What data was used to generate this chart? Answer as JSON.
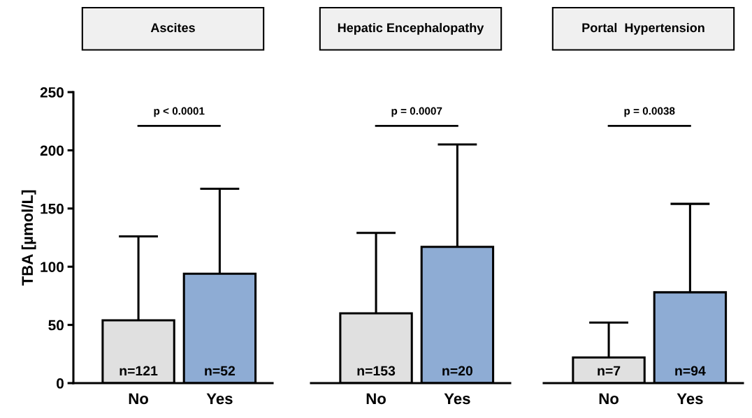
{
  "chart_data": [
    {
      "type": "bar",
      "title": "Ascites",
      "ylabel": "TBA [µmol/L]",
      "categories": [
        "No",
        "Yes"
      ],
      "values": [
        54,
        94
      ],
      "colors": [
        "#e0e0e0",
        "#8eacd4"
      ],
      "errors": [
        [
          54,
          126
        ],
        [
          94,
          167
        ]
      ],
      "ylim": [
        0,
        250
      ],
      "yticks": [
        0,
        50,
        100,
        150,
        200,
        250
      ],
      "grid": false,
      "legend": false,
      "annotations": [
        "p < 0.0001",
        {
          "text": "n=121",
          "x": "No",
          "y": 0
        },
        {
          "text": "n=52",
          "x": "Yes",
          "y": 0
        }
      ]
    },
    {
      "type": "bar",
      "title": "Hepatic Encephalopathy",
      "categories": [
        "No",
        "Yes"
      ],
      "values": [
        60,
        117
      ],
      "colors": [
        "#e0e0e0",
        "#8eacd4"
      ],
      "errors": [
        [
          60,
          129
        ],
        [
          117,
          205
        ]
      ],
      "ylim": [
        0,
        250
      ],
      "tick_labels": "x",
      "grid": false,
      "legend": false,
      "annotations": [
        "p = 0.0007",
        {
          "text": "n=153",
          "x": "No",
          "y": 0
        },
        {
          "text": "n=20",
          "x": "Yes",
          "y": 0
        }
      ]
    },
    {
      "type": "bar",
      "title": "Portal  Hypertension",
      "categories": [
        "No",
        "Yes"
      ],
      "values": [
        22,
        78
      ],
      "colors": [
        "#e0e0e0",
        "#8eacd4"
      ],
      "errors": [
        [
          22,
          52
        ],
        [
          78,
          154
        ]
      ],
      "ylim": [
        0,
        250
      ],
      "tick_labels": "x",
      "grid": false,
      "legend": false,
      "annotations": [
        "p = 0.0038",
        {
          "text": "n=7",
          "x": "No",
          "y": 0
        },
        {
          "text": "n=94",
          "x": "Yes",
          "y": 0
        }
      ]
    }
  ]
}
